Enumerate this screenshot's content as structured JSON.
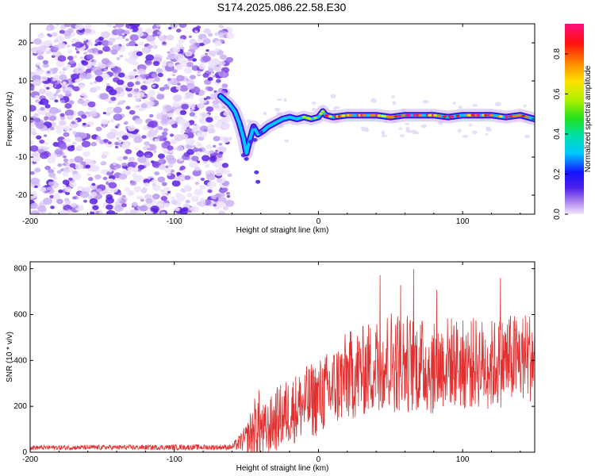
{
  "title": "S174.2025.086.22.58.E30",
  "chart_data": [
    {
      "type": "heatmap",
      "xlabel": "Height of straight line (km)",
      "ylabel": "Frequency (Hz)",
      "xlim": [
        -200,
        150
      ],
      "ylim": [
        -25,
        25
      ],
      "xticks": [
        -200,
        -100,
        0,
        100
      ],
      "yticks": [
        -20,
        -10,
        0,
        10,
        20
      ],
      "noise_region": [
        -200,
        -65
      ],
      "ridge": {
        "x": [
          -68,
          -62,
          -58,
          -55,
          -52,
          -50,
          -48,
          -45,
          -42,
          -38,
          -35,
          -30,
          -25,
          -20,
          -15,
          -10,
          -5,
          0,
          3,
          5,
          10,
          20,
          30,
          40,
          50,
          60,
          70,
          80,
          90,
          100,
          110,
          120,
          130,
          140,
          150
        ],
        "y": [
          6,
          4,
          2,
          -1,
          -5,
          -9,
          -6,
          -2,
          -4,
          -3,
          -2,
          -1,
          0,
          0.5,
          0,
          0.5,
          0,
          0.5,
          2,
          1,
          0.5,
          1,
          1,
          1,
          0.5,
          1,
          1,
          1,
          0.5,
          1,
          1,
          1,
          0.5,
          1,
          0
        ]
      },
      "colorbar": {
        "label": "Normalized spectral amplitude",
        "ticks": [
          0.0,
          0.2,
          0.4,
          0.6,
          0.8
        ],
        "range": [
          0,
          0.95
        ]
      }
    },
    {
      "type": "line",
      "xlabel": "Height of straight line (km)",
      "ylabel": "SNR (10 * v/v)",
      "xlim": [
        -200,
        150
      ],
      "ylim": [
        0,
        830
      ],
      "xticks": [
        -200,
        -100,
        0,
        100
      ],
      "yticks": [
        0,
        200,
        400,
        600,
        800
      ],
      "color": "#e03030",
      "envelope": {
        "x": [
          -200,
          -60,
          -50,
          -42,
          -38,
          -35,
          -30,
          -20,
          -10,
          0,
          10,
          20,
          30,
          40,
          50,
          60,
          70,
          80,
          90,
          100,
          110,
          120,
          130,
          140,
          150
        ],
        "mean": [
          20,
          22,
          60,
          120,
          90,
          100,
          140,
          180,
          210,
          240,
          280,
          330,
          350,
          380,
          400,
          390,
          380,
          360,
          400,
          380,
          390,
          380,
          400,
          410,
          420
        ],
        "spread": [
          10,
          12,
          60,
          170,
          120,
          120,
          140,
          150,
          160,
          170,
          180,
          200,
          200,
          210,
          230,
          220,
          210,
          200,
          200,
          200,
          200,
          200,
          200,
          200,
          200
        ]
      }
    }
  ]
}
